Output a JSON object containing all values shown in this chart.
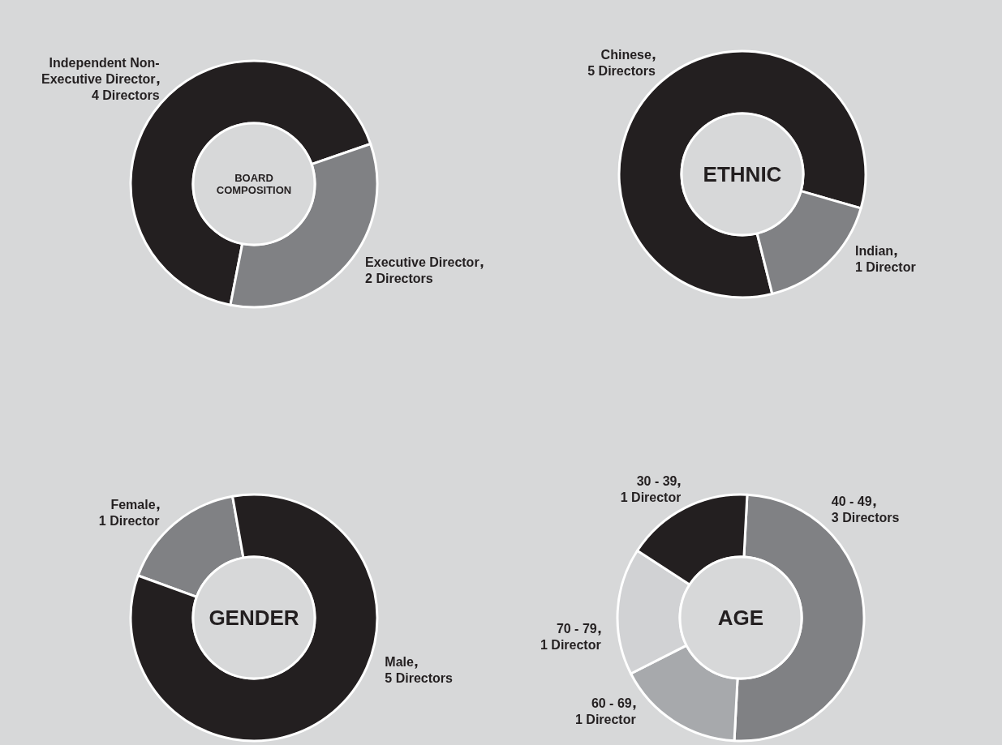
{
  "chart_data": [
    {
      "type": "donut",
      "title": "BOARD COMPOSITION",
      "categories": [
        "Independent Non-Executive Director",
        "Executive Director"
      ],
      "values": [
        4,
        2
      ],
      "value_labels": [
        "4 Directors",
        "2 Directors"
      ],
      "colors": [
        "#231f20",
        "#808184"
      ]
    },
    {
      "type": "donut",
      "title": "ETHNIC",
      "categories": [
        "Chinese",
        "Indian"
      ],
      "values": [
        5,
        1
      ],
      "value_labels": [
        "5 Directors",
        "1 Director"
      ],
      "colors": [
        "#231f20",
        "#808184"
      ]
    },
    {
      "type": "donut",
      "title": "GENDER",
      "categories": [
        "Female",
        "Male"
      ],
      "values": [
        1,
        5
      ],
      "value_labels": [
        "1 Director",
        "5 Directors"
      ],
      "colors": [
        "#808184",
        "#231f20"
      ]
    },
    {
      "type": "donut",
      "title": "AGE",
      "categories": [
        "40 - 49",
        "60 - 69",
        "70 - 79",
        "30 - 39"
      ],
      "values": [
        3,
        1,
        1,
        1
      ],
      "value_labels": [
        "3 Directors",
        "1 Director",
        "1 Director",
        "1 Director"
      ],
      "colors": [
        "#808184",
        "#a7a9ac",
        "#d1d2d4",
        "#231f20"
      ]
    }
  ]
}
